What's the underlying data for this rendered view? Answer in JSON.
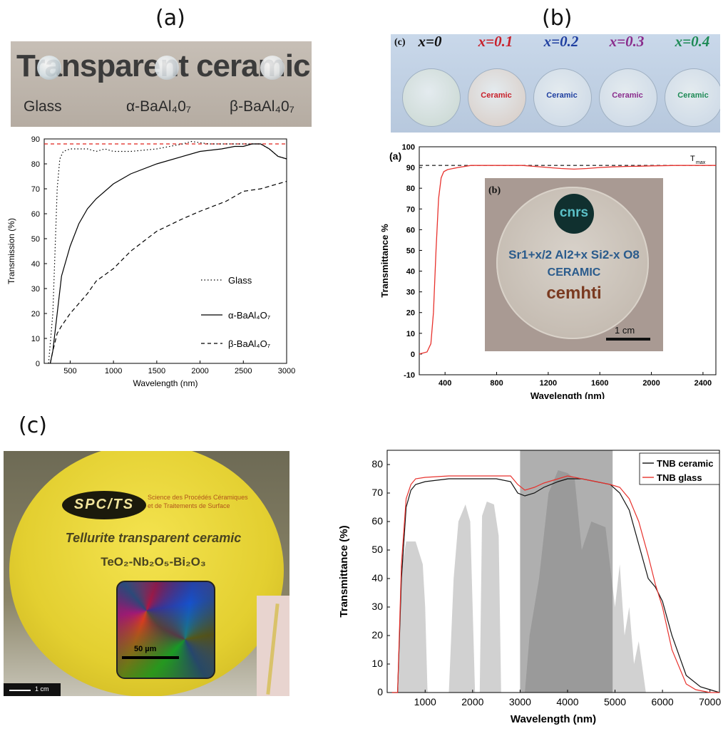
{
  "panels": {
    "a_label": "(a)",
    "b_label": "(b)",
    "c_label": "(c)"
  },
  "photo_a": {
    "title": "Transparent ceramic",
    "samples": [
      "Glass",
      "α-BaAl₄0₇",
      "β-BaAl₄0₇"
    ]
  },
  "photo_b": {
    "tag": "(c)",
    "samples": [
      {
        "label": "x=0",
        "color": "#111111",
        "text": ""
      },
      {
        "label": "x=0.1",
        "color": "#c8202a",
        "text": "Ceramic"
      },
      {
        "label": "x=0.2",
        "color": "#1f3fa0",
        "text": "Ceramic"
      },
      {
        "label": "x=0.3",
        "color": "#8a2c8c",
        "text": "Ceramic"
      },
      {
        "label": "x=0.4",
        "color": "#1d8a55",
        "text": "Ceramic"
      }
    ]
  },
  "photo_b_inset": {
    "tag": "(b)",
    "logo": "cnrs",
    "formula": "Sr1+x/2 Al2+x Si2-x O8",
    "subtitle": "CERAMIC",
    "brand": "cemhti",
    "scale": "1 cm"
  },
  "photo_c": {
    "logo": "SPC/TS",
    "org_line1": "Science des Procédés Céramiques",
    "org_line2": "et de Traitements de Surface",
    "title": "Tellurite transparent ceramic",
    "formula": "TeO₂-Nb₂O₅-Bi₂O₃",
    "micro_scale": "50 µm",
    "scale": "1 cm"
  },
  "chart_data": [
    {
      "type": "line",
      "xlabel": "Wavelength (nm)",
      "ylabel": "Transmission (%)",
      "xlim": [
        200,
        3000
      ],
      "ylim": [
        0,
        90
      ],
      "xticks": [
        500,
        1000,
        1500,
        2000,
        2500,
        3000
      ],
      "yticks": [
        0,
        10,
        20,
        30,
        40,
        50,
        60,
        70,
        80,
        90
      ],
      "reference_line": {
        "y": 88,
        "style": "dashed",
        "color": "#e0201b"
      },
      "series": [
        {
          "name": "Glass",
          "style": "dotted",
          "x": [
            250,
            300,
            330,
            350,
            380,
            420,
            500,
            700,
            800,
            900,
            1000,
            1200,
            1500,
            1800,
            1900,
            2100,
            2300,
            2500,
            2600,
            2700,
            2800,
            2900,
            3000
          ],
          "y": [
            0,
            20,
            50,
            70,
            82,
            85,
            86,
            86,
            85,
            86,
            85,
            85,
            86,
            88,
            89,
            88,
            88,
            88,
            88,
            88,
            86,
            83,
            82
          ]
        },
        {
          "name": "α-BaAl₄O₇",
          "style": "solid",
          "x": [
            270,
            300,
            350,
            400,
            500,
            600,
            700,
            800,
            1000,
            1200,
            1500,
            2000,
            2250,
            2400,
            2500,
            2600,
            2700,
            2800,
            2900,
            3000
          ],
          "y": [
            0,
            5,
            20,
            35,
            47,
            56,
            62,
            66,
            72,
            76,
            80,
            85,
            86,
            87,
            87,
            88,
            88,
            86,
            83,
            82
          ]
        },
        {
          "name": "β-BaAl₄O₇",
          "style": "dashed",
          "x": [
            270,
            300,
            350,
            400,
            500,
            600,
            700,
            800,
            1000,
            1200,
            1500,
            1800,
            2000,
            2300,
            2500,
            2700,
            2900,
            3000
          ],
          "y": [
            0,
            5,
            12,
            15,
            20,
            24,
            28,
            33,
            38,
            45,
            53,
            58,
            61,
            65,
            69,
            70,
            72,
            73
          ]
        }
      ]
    },
    {
      "type": "line",
      "xlabel": "Wavelength (nm)",
      "ylabel": "Transmittance %",
      "tag": "(a)",
      "xlim": [
        200,
        2500
      ],
      "ylim": [
        -10,
        100
      ],
      "xticks": [
        400,
        800,
        1200,
        1600,
        2000,
        2400
      ],
      "yticks": [
        -10,
        0,
        10,
        20,
        30,
        40,
        50,
        60,
        70,
        80,
        90,
        100
      ],
      "reference_line": {
        "y": 91,
        "style": "dashed",
        "color": "#333333",
        "label": "T",
        "label_sub": "max"
      },
      "series": [
        {
          "name": "",
          "color": "#e8322d",
          "x": [
            200,
            260,
            290,
            310,
            330,
            350,
            370,
            390,
            420,
            500,
            600,
            700,
            800,
            900,
            1000,
            1100,
            1200,
            1300,
            1400,
            1500,
            1600,
            1700,
            1800,
            1900,
            2000,
            2200,
            2400,
            2500
          ],
          "y": [
            0,
            1,
            5,
            20,
            50,
            75,
            85,
            88,
            89,
            90,
            91,
            91,
            91,
            91,
            91,
            90.5,
            90,
            89.5,
            89.2,
            89.5,
            90,
            90.3,
            90.5,
            90.6,
            90.8,
            91,
            91,
            91
          ]
        }
      ]
    },
    {
      "type": "line",
      "xlabel": "Wavelength (nm)",
      "ylabel": "Transmittance (%)",
      "xlim": [
        200,
        7200
      ],
      "ylim": [
        0,
        85
      ],
      "xticks": [
        1000,
        2000,
        3000,
        4000,
        5000,
        6000,
        7000
      ],
      "yticks": [
        0,
        10,
        20,
        30,
        40,
        50,
        60,
        70,
        80
      ],
      "shaded_band": {
        "x_from": 3000,
        "x_to": 4950
      },
      "legend": "top-right",
      "series": [
        {
          "name": "TNB ceramic",
          "color": "#111111",
          "x": [
            300,
            420,
            500,
            600,
            700,
            800,
            1000,
            1500,
            2000,
            2500,
            2800,
            2950,
            3100,
            3300,
            3500,
            3800,
            4000,
            4300,
            4600,
            4900,
            5100,
            5300,
            5500,
            5700,
            5850,
            6000,
            6200,
            6500,
            6800,
            7000,
            7200
          ],
          "y": [
            0,
            0,
            40,
            65,
            71,
            73,
            74,
            75,
            75,
            75,
            74,
            70,
            69,
            70,
            72,
            74,
            75,
            75,
            74,
            73,
            70,
            64,
            52,
            40,
            37,
            32,
            20,
            6,
            2,
            1,
            0
          ]
        },
        {
          "name": "TNB glass",
          "color": "#e8322d",
          "x": [
            300,
            420,
            500,
            600,
            700,
            800,
            1000,
            1500,
            2000,
            2500,
            2800,
            2950,
            3100,
            3300,
            3500,
            3800,
            4000,
            4300,
            4600,
            4900,
            5100,
            5300,
            5500,
            5700,
            5850,
            6000,
            6200,
            6500,
            6700,
            7000,
            7200
          ],
          "y": [
            0,
            0,
            45,
            68,
            73,
            75,
            75.5,
            76,
            76,
            76,
            76,
            73,
            71,
            72,
            73.5,
            75,
            76,
            75,
            74,
            73,
            72,
            68,
            60,
            48,
            38,
            30,
            15,
            3,
            1,
            0,
            0
          ]
        }
      ]
    }
  ]
}
